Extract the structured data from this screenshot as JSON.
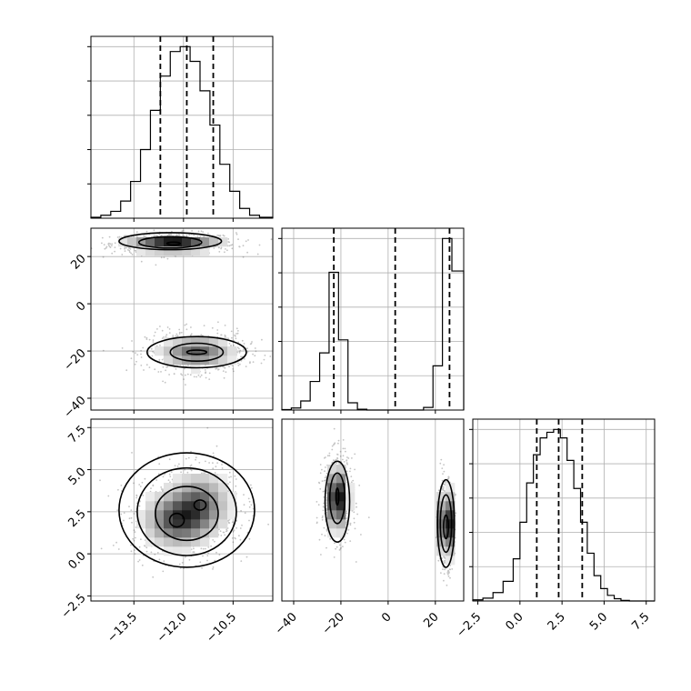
{
  "chart_data": [
    {
      "type": "histogram",
      "panel": "hist-param-1",
      "x_range": [
        -14.8,
        -9.3
      ],
      "bin_edges": [
        -14.8,
        -14.5,
        -14.2,
        -13.9,
        -13.6,
        -13.3,
        -13.0,
        -12.7,
        -12.4,
        -12.1,
        -11.8,
        -11.5,
        -11.2,
        -10.9,
        -10.6,
        -10.3,
        -10.0,
        -9.7,
        -9.3
      ],
      "counts": [
        2,
        6,
        14,
        35,
        75,
        140,
        220,
        290,
        340,
        350,
        320,
        260,
        190,
        110,
        55,
        20,
        6,
        2
      ],
      "quantiles": [
        -12.7,
        -11.9,
        -11.1
      ],
      "x_ticks": [
        -13.5,
        -12.0,
        -10.5
      ],
      "x_tick_labels": [
        "−13.5",
        "−12.0",
        "−10.5"
      ],
      "grid": true
    },
    {
      "type": "histogram",
      "panel": "hist-param-2",
      "x_range": [
        -45,
        32
      ],
      "bin_edges": [
        -45,
        -41,
        -37,
        -33,
        -29,
        -25,
        -21,
        -17,
        -13,
        -9,
        -5,
        -1,
        3,
        7,
        11,
        15,
        19,
        23,
        27,
        32
      ],
      "counts": [
        2,
        8,
        35,
        110,
        220,
        530,
        270,
        28,
        3,
        0,
        0,
        0,
        0,
        0,
        0,
        10,
        170,
        660,
        535
      ],
      "quantiles": [
        -23,
        3,
        26
      ],
      "x_ticks": [
        -40,
        -20,
        0,
        20
      ],
      "x_tick_labels": [
        "−40",
        "−20",
        "0",
        "20"
      ],
      "grid": true
    },
    {
      "type": "histogram",
      "panel": "hist-param-3",
      "x_range": [
        -2.8,
        8.0
      ],
      "bin_edges": [
        -2.8,
        -2.2,
        -1.6,
        -1.0,
        -0.4,
        0.0,
        0.4,
        0.8,
        1.2,
        1.6,
        2.0,
        2.4,
        2.8,
        3.2,
        3.6,
        4.0,
        4.4,
        4.8,
        5.2,
        5.6,
        6.0,
        6.5,
        8.0
      ],
      "counts": [
        2,
        5,
        15,
        35,
        75,
        140,
        210,
        260,
        290,
        300,
        305,
        290,
        250,
        200,
        140,
        85,
        45,
        22,
        10,
        4,
        1,
        0
      ],
      "quantiles": [
        1.0,
        2.3,
        3.7
      ],
      "x_ticks": [
        -2.5,
        0.0,
        2.5,
        5.0,
        7.5
      ],
      "x_tick_labels": [
        "−2.5",
        "0.0",
        "2.5",
        "5.0",
        "7.5"
      ],
      "grid": true
    },
    {
      "type": "heatmap",
      "panel": "density-1-2",
      "x_range": [
        -14.8,
        -9.3
      ],
      "y_range": [
        -45,
        32
      ],
      "modes": [
        {
          "cx": -12.3,
          "cy": 25.5,
          "sx": 0.75,
          "sy": 1.8,
          "weight": 0.5
        },
        {
          "cx": -11.6,
          "cy": -20.5,
          "sx": 0.6,
          "sy": 3.5,
          "weight": 0.5
        }
      ],
      "contours": [
        {
          "cx": -12.3,
          "cy": 25.5,
          "rx": 0.2,
          "ry": 0.6
        },
        {
          "cx": -12.4,
          "cy": 26.0,
          "rx": 0.95,
          "ry": 2.4
        },
        {
          "cx": -12.4,
          "cy": 26.5,
          "rx": 1.55,
          "ry": 3.6
        },
        {
          "cx": -11.6,
          "cy": -20.5,
          "rx": 0.3,
          "ry": 0.9
        },
        {
          "cx": -11.6,
          "cy": -20.5,
          "rx": 0.8,
          "ry": 3.8
        },
        {
          "cx": -11.6,
          "cy": -20.5,
          "rx": 1.5,
          "ry": 6.6
        }
      ],
      "x_ticks": [
        -13.5,
        -12.0,
        -10.5
      ],
      "y_ticks": [
        -40,
        -20,
        0,
        20
      ],
      "y_tick_labels": [
        "−40",
        "−20",
        "0",
        "20"
      ],
      "grid": true
    },
    {
      "type": "heatmap",
      "panel": "density-1-3",
      "x_range": [
        -14.8,
        -9.3
      ],
      "y_range": [
        -2.8,
        8.0
      ],
      "modes": [
        {
          "cx": -12.2,
          "cy": 2.0,
          "sx": 0.55,
          "sy": 0.9,
          "weight": 0.55
        },
        {
          "cx": -11.5,
          "cy": 3.0,
          "sx": 0.5,
          "sy": 1.0,
          "weight": 0.45
        }
      ],
      "contours": [
        {
          "cx": -12.2,
          "cy": 2.0,
          "rx": 0.22,
          "ry": 0.4
        },
        {
          "cx": -11.5,
          "cy": 2.9,
          "rx": 0.18,
          "ry": 0.3
        },
        {
          "cx": -11.9,
          "cy": 2.4,
          "rx": 0.95,
          "ry": 1.6
        },
        {
          "cx": -11.9,
          "cy": 2.5,
          "rx": 1.5,
          "ry": 2.6
        },
        {
          "cx": -11.9,
          "cy": 2.6,
          "rx": 2.05,
          "ry": 3.4
        }
      ],
      "x_ticks": [
        -13.5,
        -12.0,
        -10.5
      ],
      "x_tick_labels": [
        "−13.5",
        "−12.0",
        "−10.5"
      ],
      "y_ticks": [
        -2.5,
        0.0,
        2.5,
        5.0,
        7.5
      ],
      "y_tick_labels": [
        "−2.5",
        "0.0",
        "2.5",
        "5.0",
        "7.5"
      ],
      "grid": true
    },
    {
      "type": "heatmap",
      "panel": "density-2-3",
      "x_range": [
        -45,
        32
      ],
      "y_range": [
        -2.8,
        8.0
      ],
      "modes": [
        {
          "cx": -21.5,
          "cy": 3.3,
          "sx": 2.5,
          "sy": 1.0,
          "weight": 0.5
        },
        {
          "cx": 24.5,
          "cy": 1.8,
          "sx": 1.3,
          "sy": 1.0,
          "weight": 0.5
        }
      ],
      "contours": [
        {
          "cx": -21.5,
          "cy": 3.4,
          "rx": 0.6,
          "ry": 0.5
        },
        {
          "cx": -21.5,
          "cy": 3.3,
          "rx": 3.2,
          "ry": 1.5
        },
        {
          "cx": -21.5,
          "cy": 3.1,
          "rx": 5.2,
          "ry": 2.4
        },
        {
          "cx": 24.5,
          "cy": 1.6,
          "rx": 1.0,
          "ry": 0.7
        },
        {
          "cx": 24.5,
          "cy": 1.8,
          "rx": 2.4,
          "ry": 1.7
        },
        {
          "cx": 24.5,
          "cy": 1.8,
          "rx": 3.6,
          "ry": 2.6
        }
      ],
      "x_ticks": [
        -40,
        -20,
        0,
        20
      ],
      "x_tick_labels": [
        "−40",
        "−20",
        "0",
        "20"
      ],
      "grid": true
    }
  ]
}
